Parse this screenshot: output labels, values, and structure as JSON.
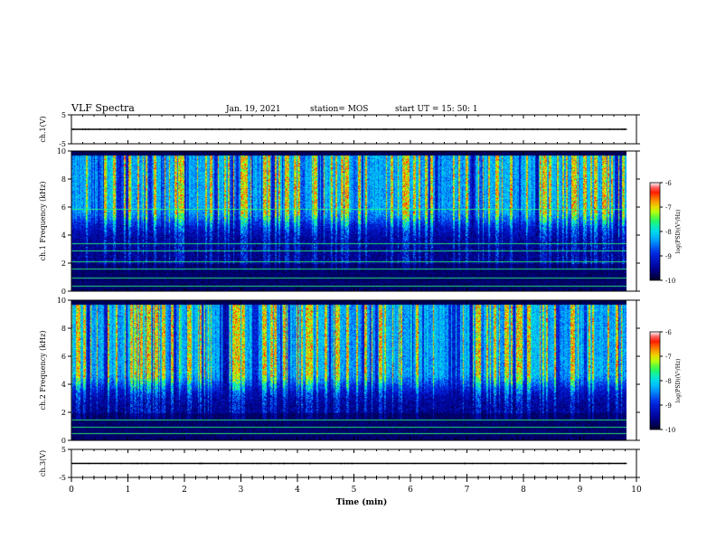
{
  "header": {
    "title": "VLF Spectra",
    "date": "Jan. 19, 2021",
    "station": "station= MOS",
    "start": "start UT =  15: 50: 1"
  },
  "chart_data": [
    {
      "type": "line",
      "panel": "ch.1(V) waveform",
      "ylabel": "ch.1(V)",
      "x": [
        0,
        9.83
      ],
      "y": [
        0,
        0
      ],
      "ylim": [
        -5,
        5
      ],
      "yticks": [
        "5",
        "-5"
      ],
      "xlim": [
        0,
        10
      ]
    },
    {
      "type": "heatmap",
      "panel": "ch.1 spectrogram",
      "ylabel": "ch.1 Frequency (kHz)",
      "ylim": [
        0,
        10
      ],
      "yticks": [
        "0",
        "2",
        "4",
        "6",
        "8",
        "10"
      ],
      "xlim": [
        0,
        10
      ],
      "data_x_end": 9.83,
      "z_range": [
        -10,
        -6
      ],
      "colorbar_ticks": [
        "-6",
        "-7",
        "-8",
        "-9",
        "-10"
      ],
      "colorbar_label": "log(PSD)(V²/Hz)",
      "emission_band_khz": [
        6,
        9.5
      ],
      "lines_khz": [
        0.4,
        1.0,
        1.6,
        2.1,
        2.9,
        3.4,
        5.9
      ]
    },
    {
      "type": "heatmap",
      "panel": "ch.2 spectrogram",
      "ylabel": "ch.2 Frequency (kHz)",
      "ylim": [
        0,
        10
      ],
      "yticks": [
        "0",
        "2",
        "4",
        "6",
        "8",
        "10"
      ],
      "xlim": [
        0,
        10
      ],
      "data_x_end": 9.83,
      "z_range": [
        -10,
        -6
      ],
      "colorbar_ticks": [
        "-6",
        "-7",
        "-8",
        "-9",
        "-10"
      ],
      "colorbar_label": "log(PSD)(V²/Hz)",
      "emission_band_khz": [
        5,
        9.5
      ],
      "lines_khz": [
        0.5,
        1.0,
        1.5
      ]
    },
    {
      "type": "line",
      "panel": "ch.3(V) waveform",
      "ylabel": "ch.3(V)",
      "x": [
        0,
        9.83
      ],
      "y": [
        0,
        0
      ],
      "ylim": [
        -5,
        5
      ],
      "yticks": [
        "5",
        "-5"
      ],
      "xlim": [
        0,
        10
      ]
    }
  ],
  "xaxis": {
    "label": "Time (min)",
    "ticks": [
      "0",
      "1",
      "2",
      "3",
      "4",
      "5",
      "6",
      "7",
      "8",
      "9",
      "10"
    ]
  },
  "colors": {
    "background": "#ffffff",
    "axis": "#000000",
    "spectrum": [
      "#000040",
      "#0000c0",
      "#0060ff",
      "#00e0ff",
      "#40ff40",
      "#ffff00",
      "#ff8000",
      "#ff0000",
      "#ffffff"
    ]
  }
}
